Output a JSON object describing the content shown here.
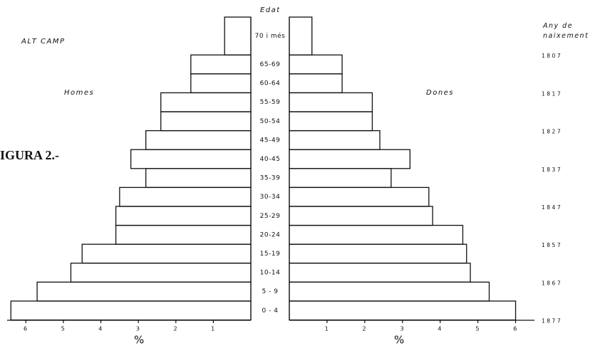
{
  "chart_data": {
    "type": "pyramid",
    "title": "ALT CAMP",
    "figure_label": "IGURA 2.-",
    "center_label": "Edat",
    "year_label": "Any de naixement",
    "x_label": "%",
    "categories": [
      "70 i més",
      "65-69",
      "60-64",
      "55-59",
      "50-54",
      "45-49",
      "40-45",
      "35-39",
      "30-34",
      "25-29",
      "20-24",
      "15-19",
      "10-14",
      "5 - 9",
      "0 - 4"
    ],
    "series": [
      {
        "name": "Homes",
        "color": "#111111",
        "values": [
          0.7,
          1.6,
          1.6,
          2.4,
          2.4,
          2.8,
          3.2,
          2.8,
          3.5,
          3.6,
          3.6,
          4.5,
          4.8,
          5.7,
          6.4
        ]
      },
      {
        "name": "Dones",
        "color": "#111111",
        "values": [
          0.6,
          1.4,
          1.4,
          2.2,
          2.2,
          2.4,
          3.2,
          2.7,
          3.7,
          3.8,
          4.6,
          4.7,
          4.8,
          5.3,
          6.0
        ]
      }
    ],
    "birth_years": [
      "1807",
      "1817",
      "1827",
      "1837",
      "1847",
      "1857",
      "1867",
      "1877"
    ],
    "xlim": [
      0,
      6.5
    ],
    "xticks": [
      1,
      2,
      3,
      4,
      5,
      6
    ]
  }
}
